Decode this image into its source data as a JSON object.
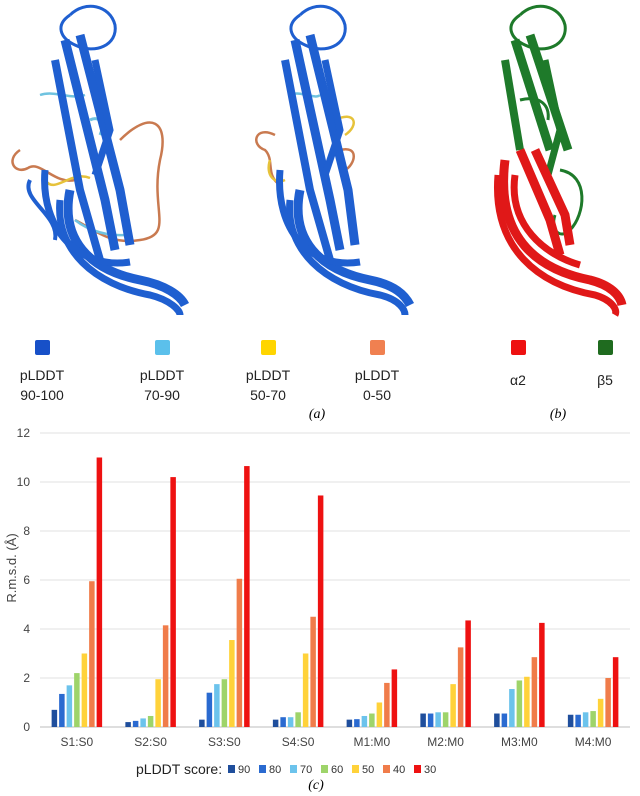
{
  "panels": {
    "a": {
      "caption": "(a)",
      "legend": [
        {
          "line1": "pLDDT",
          "line2": "90-100",
          "color": "#1750c8"
        },
        {
          "line1": "pLDDT",
          "line2": "70-90",
          "color": "#5bc0eb"
        },
        {
          "line1": "pLDDT",
          "line2": "50-70",
          "color": "#ffd500"
        },
        {
          "line1": "pLDDT",
          "line2": "0-50",
          "color": "#f08050"
        }
      ]
    },
    "b": {
      "caption": "(b)",
      "legend": [
        {
          "label": "α2",
          "color": "#ee1111"
        },
        {
          "label": "β5",
          "color": "#1f6b1f"
        }
      ]
    },
    "c": {
      "caption": "(c)"
    }
  },
  "structure_colors": {
    "blue": "#1f5fd0",
    "light_blue": "#6fc3e0",
    "yellow": "#e6c23a",
    "orange": "#c97a50",
    "red": "#e01818",
    "green": "#1e7a2a"
  },
  "chart_data": {
    "type": "bar",
    "categories": [
      "S1:S0",
      "S2:S0",
      "S3:S0",
      "S4:S0",
      "M1:M0",
      "M2:M0",
      "M3:M0",
      "M4:M0"
    ],
    "ylabel": "R.m.s.d. (Å)",
    "ylim": [
      0,
      12
    ],
    "yticks": [
      0,
      2,
      4,
      6,
      8,
      10,
      12
    ],
    "grid": true,
    "legend_title": "pLDDT score:",
    "legend_position": "bottom",
    "series": [
      {
        "name": "90",
        "color": "#1f4e9c",
        "values": [
          0.7,
          0.2,
          0.3,
          0.3,
          0.3,
          0.55,
          0.55,
          0.5
        ]
      },
      {
        "name": "80",
        "color": "#2a6ad0",
        "values": [
          1.35,
          0.25,
          1.4,
          0.4,
          0.32,
          0.55,
          0.55,
          0.5
        ]
      },
      {
        "name": "70",
        "color": "#6cc3ec",
        "values": [
          1.7,
          0.35,
          1.75,
          0.4,
          0.45,
          0.6,
          1.55,
          0.6
        ]
      },
      {
        "name": "60",
        "color": "#9ed46a",
        "values": [
          2.2,
          0.45,
          1.95,
          0.6,
          0.55,
          0.6,
          1.9,
          0.65
        ]
      },
      {
        "name": "50",
        "color": "#ffd23a",
        "values": [
          3.0,
          1.95,
          3.55,
          3.0,
          1.0,
          1.75,
          2.05,
          1.15
        ]
      },
      {
        "name": "40",
        "color": "#f07c4a",
        "values": [
          5.95,
          4.15,
          6.05,
          4.5,
          1.8,
          3.25,
          2.85,
          2.0
        ]
      },
      {
        "name": "30",
        "color": "#ee1111",
        "values": [
          11.0,
          10.2,
          10.65,
          9.45,
          2.35,
          4.35,
          4.25,
          2.85
        ]
      }
    ]
  }
}
